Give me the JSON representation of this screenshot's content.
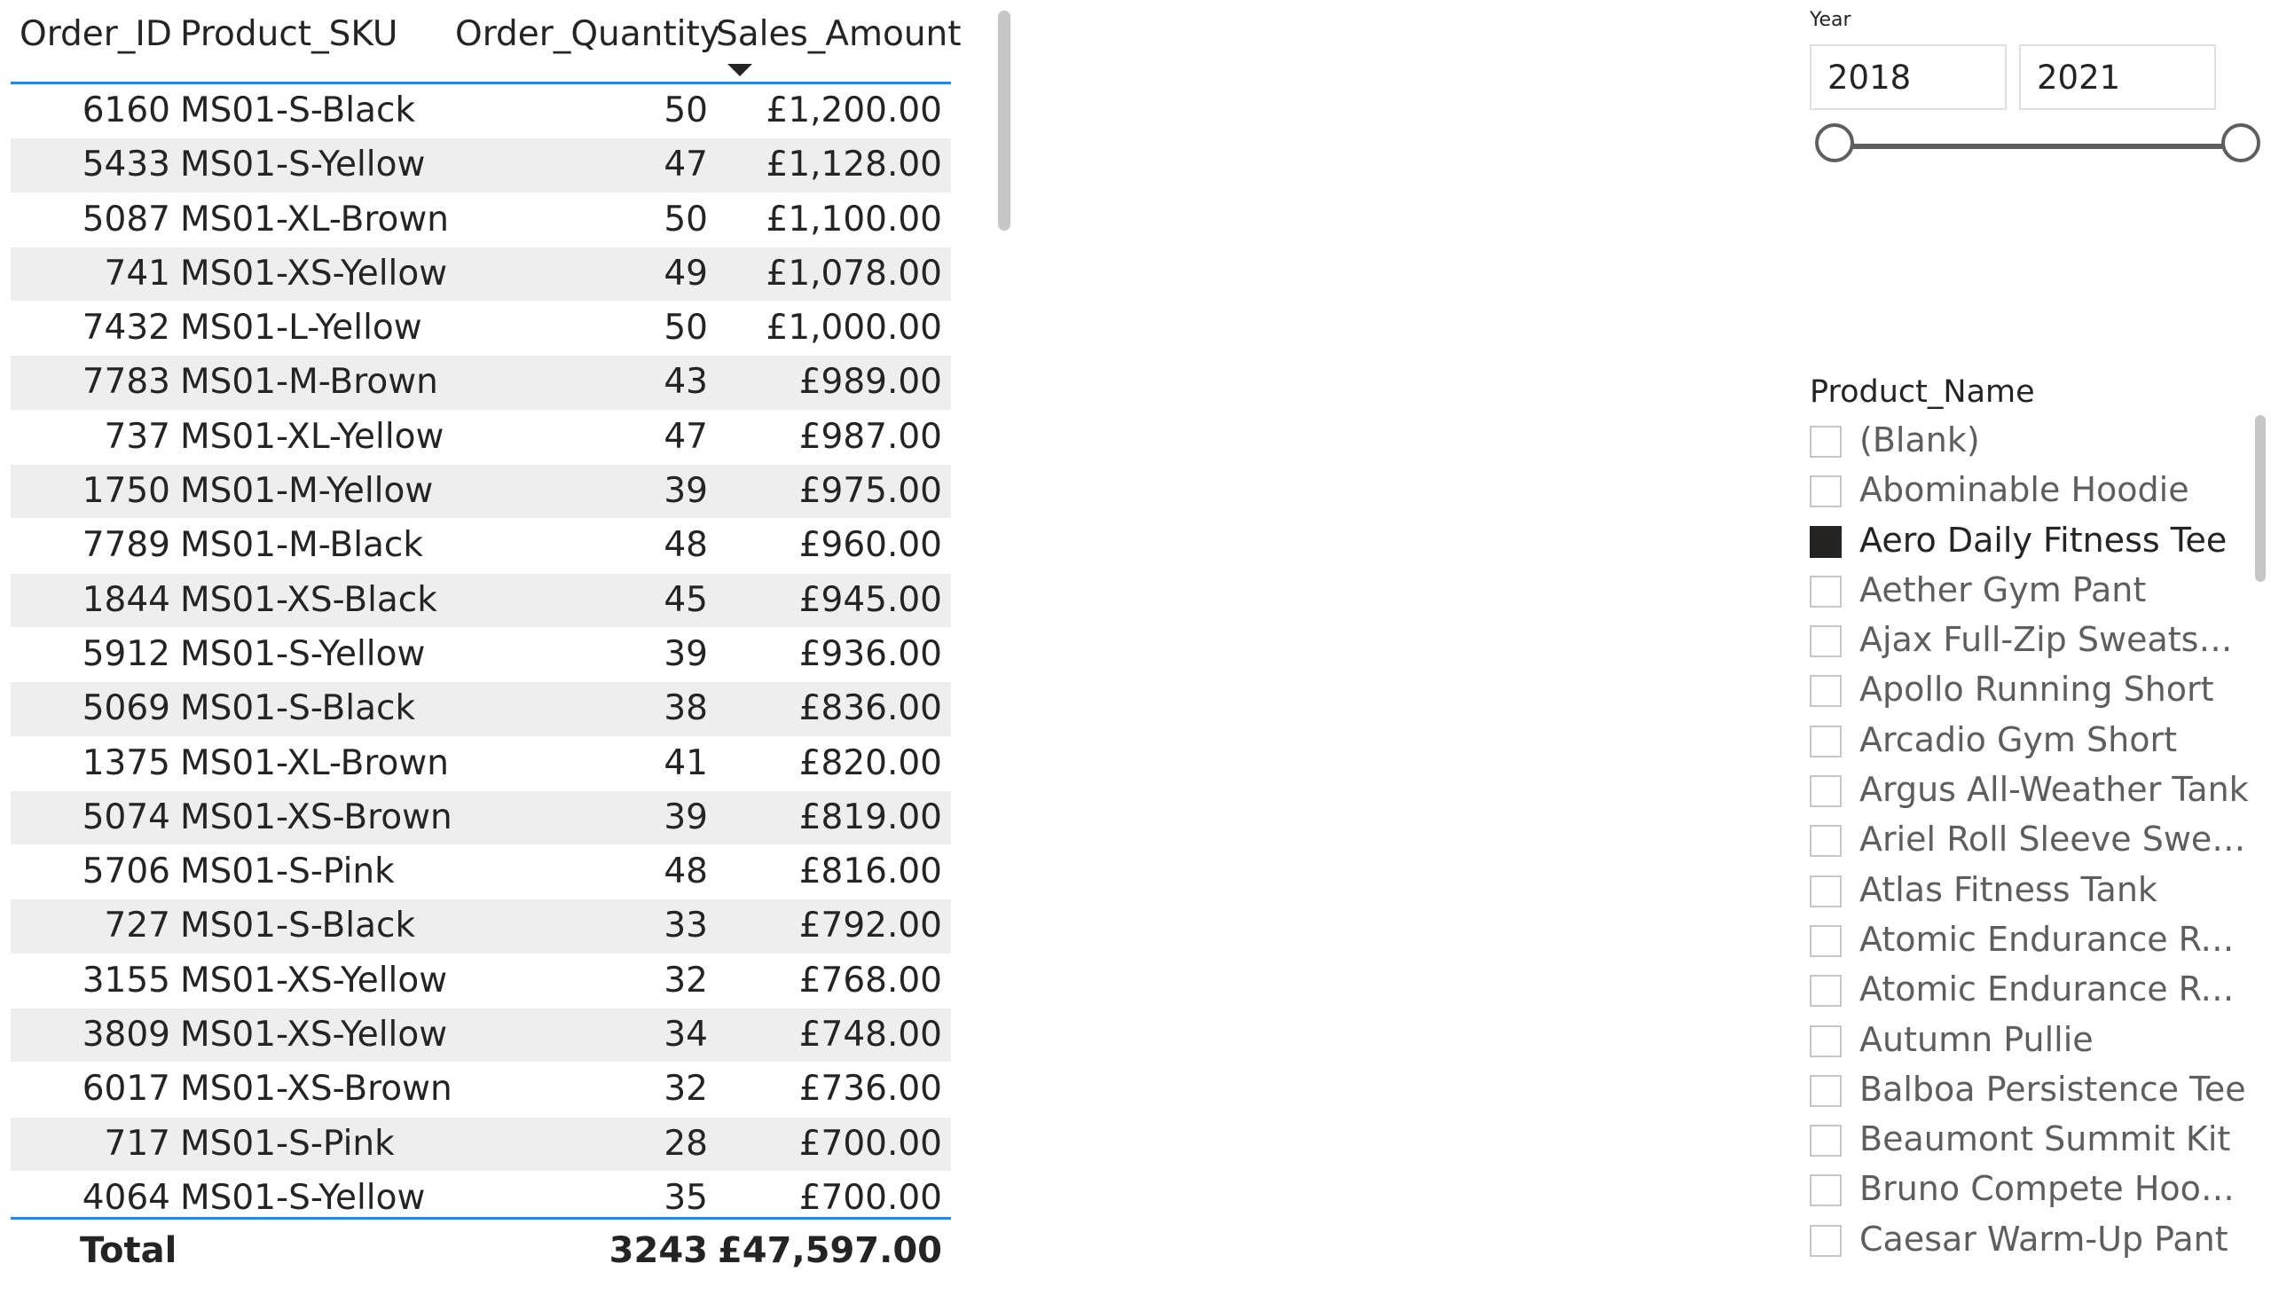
{
  "table": {
    "columns": [
      "Order_ID",
      "Product_SKU",
      "Order_Quantity",
      "Sales_Amount"
    ],
    "rows": [
      [
        "6160",
        "MS01-S-Black",
        "50",
        "£1,200.00"
      ],
      [
        "5433",
        "MS01-S-Yellow",
        "47",
        "£1,128.00"
      ],
      [
        "5087",
        "MS01-XL-Brown",
        "50",
        "£1,100.00"
      ],
      [
        "741",
        "MS01-XS-Yellow",
        "49",
        "£1,078.00"
      ],
      [
        "7432",
        "MS01-L-Yellow",
        "50",
        "£1,000.00"
      ],
      [
        "7783",
        "MS01-M-Brown",
        "43",
        "£989.00"
      ],
      [
        "737",
        "MS01-XL-Yellow",
        "47",
        "£987.00"
      ],
      [
        "1750",
        "MS01-M-Yellow",
        "39",
        "£975.00"
      ],
      [
        "7789",
        "MS01-M-Black",
        "48",
        "£960.00"
      ],
      [
        "1844",
        "MS01-XS-Black",
        "45",
        "£945.00"
      ],
      [
        "5912",
        "MS01-S-Yellow",
        "39",
        "£936.00"
      ],
      [
        "5069",
        "MS01-S-Black",
        "38",
        "£836.00"
      ],
      [
        "1375",
        "MS01-XL-Brown",
        "41",
        "£820.00"
      ],
      [
        "5074",
        "MS01-XS-Brown",
        "39",
        "£819.00"
      ],
      [
        "5706",
        "MS01-S-Pink",
        "48",
        "£816.00"
      ],
      [
        "727",
        "MS01-S-Black",
        "33",
        "£792.00"
      ],
      [
        "3155",
        "MS01-XS-Yellow",
        "32",
        "£768.00"
      ],
      [
        "3809",
        "MS01-XS-Yellow",
        "34",
        "£748.00"
      ],
      [
        "6017",
        "MS01-XS-Brown",
        "32",
        "£736.00"
      ],
      [
        "717",
        "MS01-S-Pink",
        "28",
        "£700.00"
      ],
      [
        "4064",
        "MS01-S-Yellow",
        "35",
        "£700.00"
      ]
    ],
    "sorted_column": "Sales_Amount",
    "sort_direction": "descending",
    "total": {
      "label": "Total",
      "quantity": "3243",
      "sales_amount": "£47,597.00"
    }
  },
  "year_slicer": {
    "title": "Year",
    "start": "2018",
    "end": "2021"
  },
  "product_slicer": {
    "title": "Product_Name",
    "items": [
      {
        "label": "(Blank)",
        "checked": false
      },
      {
        "label": "Abominable Hoodie",
        "checked": false
      },
      {
        "label": "Aero Daily Fitness Tee",
        "checked": true
      },
      {
        "label": "Aether Gym Pant",
        "checked": false
      },
      {
        "label": "Ajax Full-Zip Sweatshirt",
        "checked": false
      },
      {
        "label": "Apollo Running Short",
        "checked": false
      },
      {
        "label": "Arcadio Gym Short",
        "checked": false
      },
      {
        "label": "Argus All-Weather Tank",
        "checked": false
      },
      {
        "label": "Ariel Roll Sleeve Sweats...",
        "checked": false
      },
      {
        "label": "Atlas Fitness Tank",
        "checked": false
      },
      {
        "label": "Atomic Endurance Runn...",
        "checked": false
      },
      {
        "label": "Atomic Endurance Runn...",
        "checked": false
      },
      {
        "label": "Autumn Pullie",
        "checked": false
      },
      {
        "label": "Balboa Persistence Tee",
        "checked": false
      },
      {
        "label": "Beaumont Summit Kit",
        "checked": false
      },
      {
        "label": "Bruno Compete Hoodie",
        "checked": false
      },
      {
        "label": "Caesar Warm-Up Pant",
        "checked": false
      }
    ]
  },
  "colors": {
    "accent": "#118dff",
    "band_row": "#eeeeee",
    "text": "#252423",
    "checked_box": "#252423"
  }
}
